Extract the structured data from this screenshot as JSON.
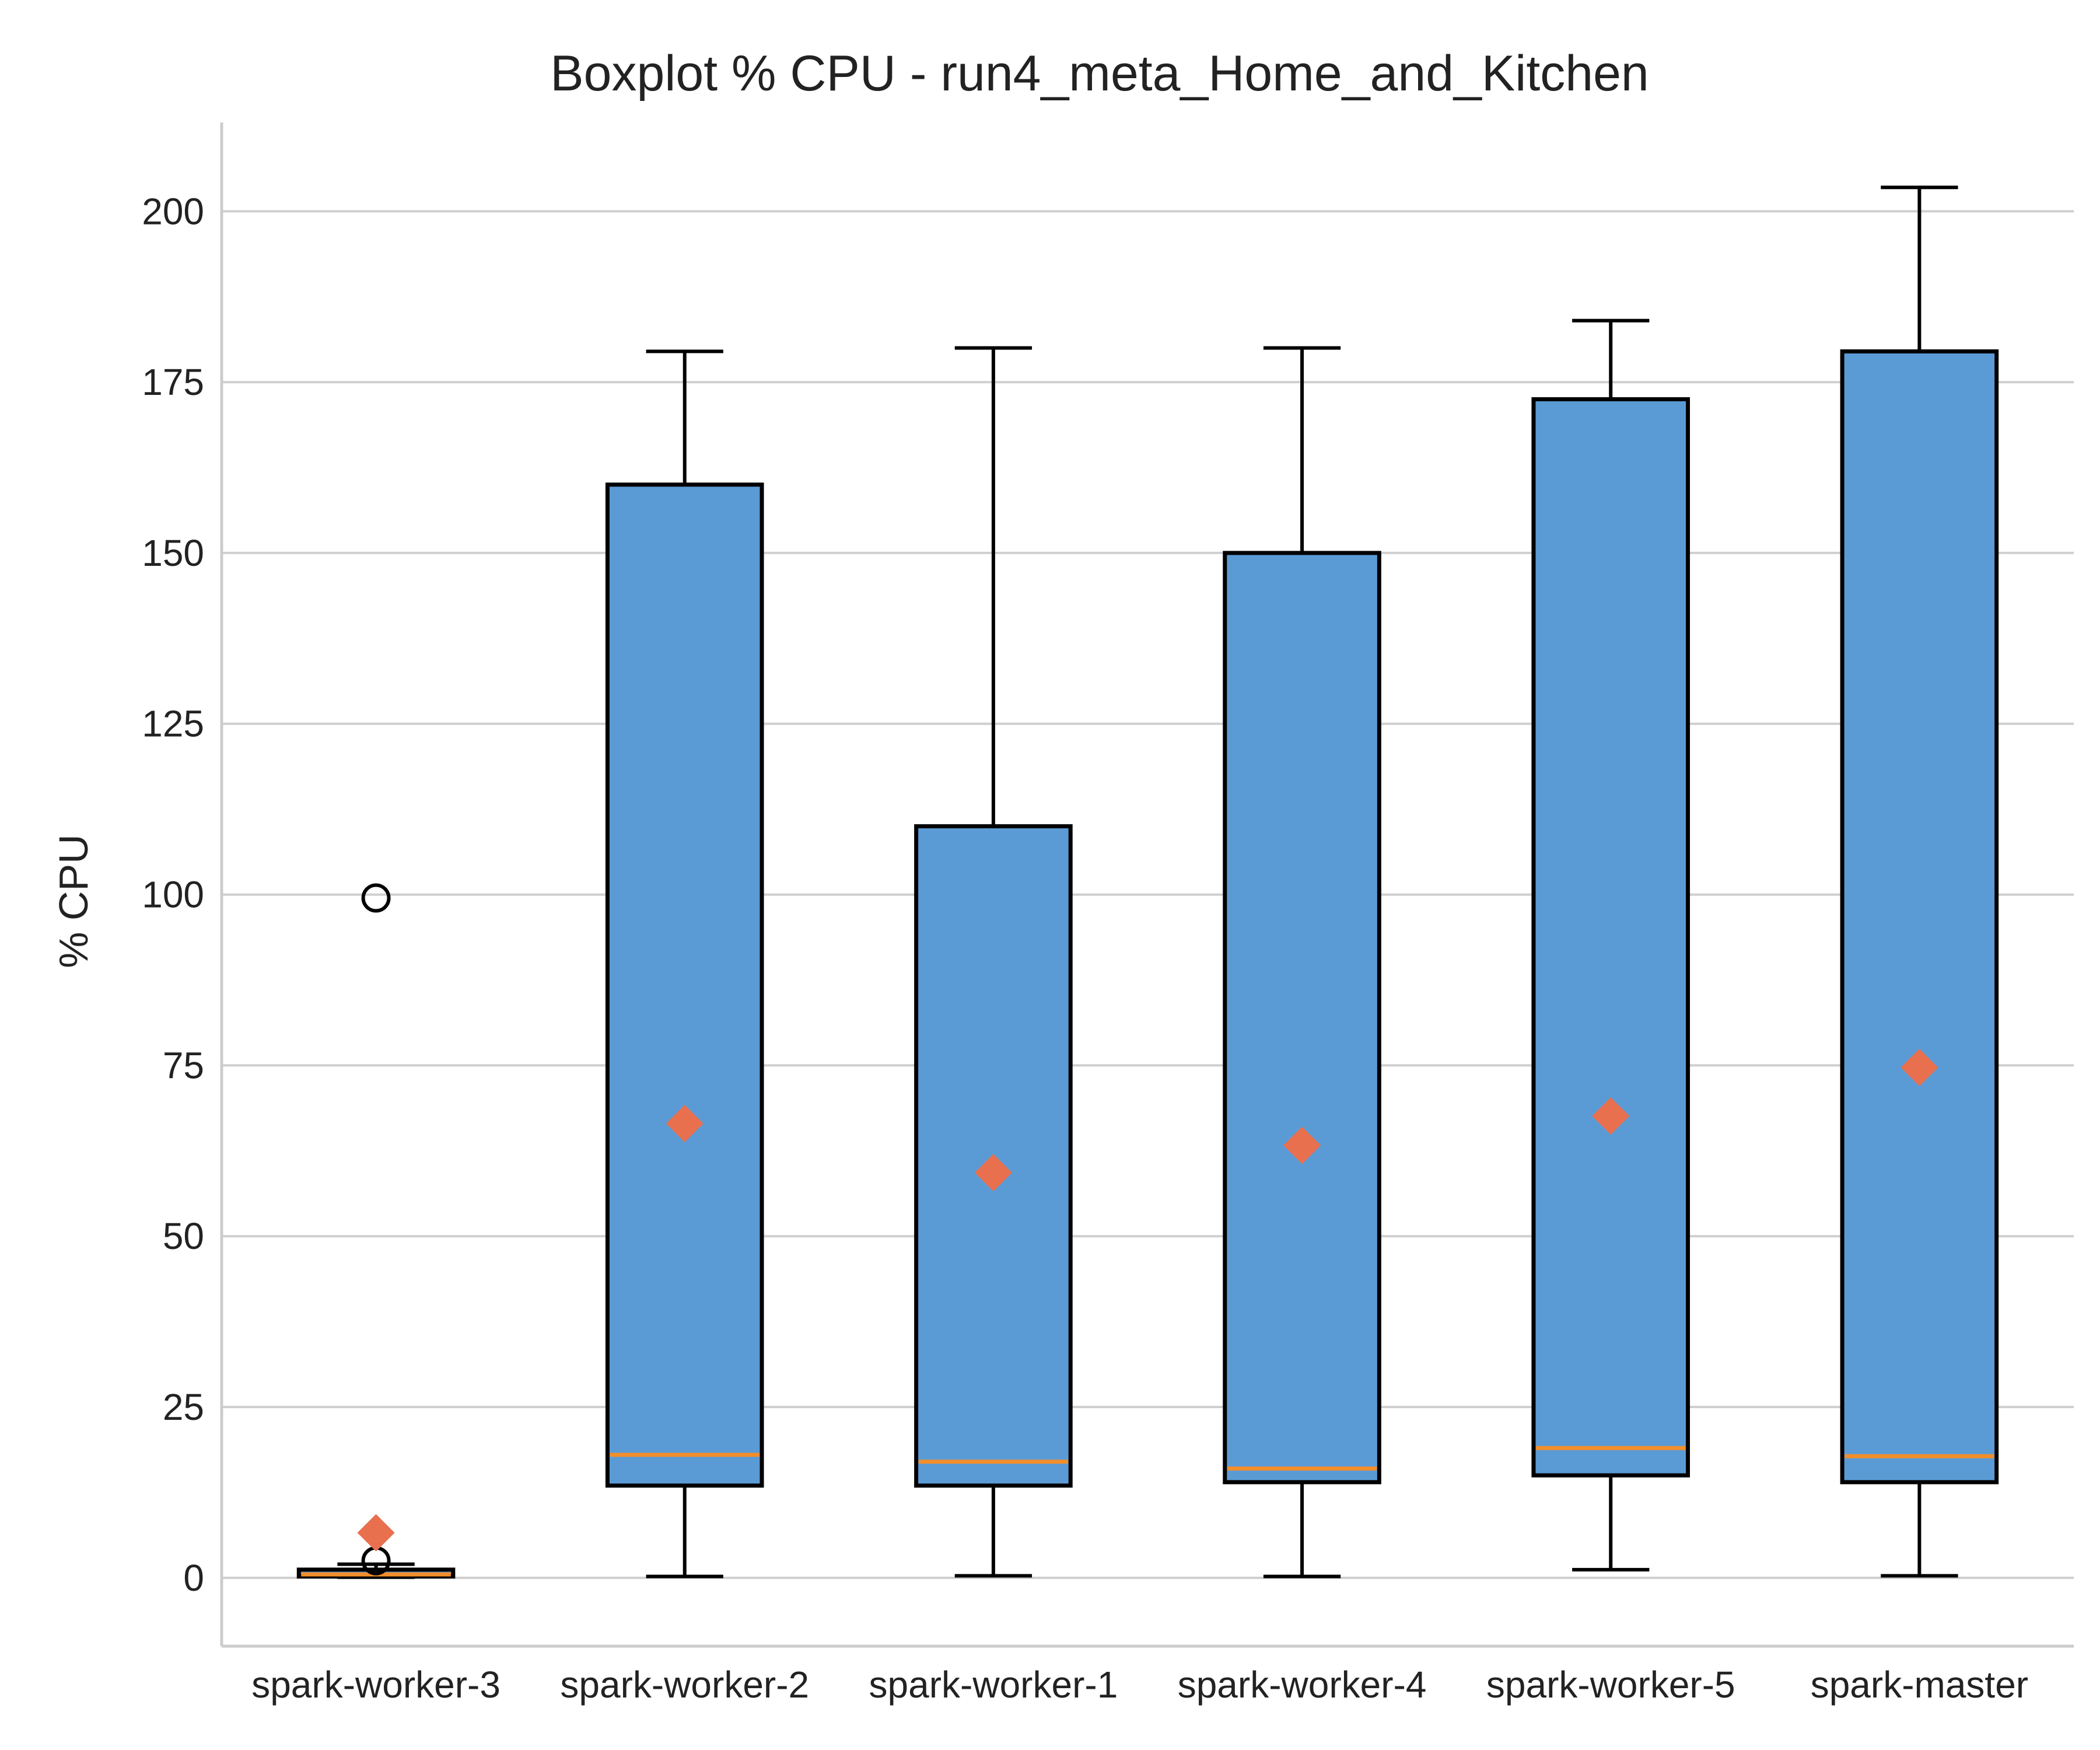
{
  "chart_data": {
    "type": "boxplot",
    "title": "Boxplot % CPU - run4_meta_Home_and_Kitchen",
    "xlabel": "",
    "ylabel": "% CPU",
    "ylim": [
      -10,
      213
    ],
    "yticks": [
      0,
      25,
      50,
      75,
      100,
      125,
      150,
      175,
      200
    ],
    "grid": "horizontal",
    "colors": {
      "box": "#5b9bd5",
      "median": "#f28e2b",
      "mean": "#e8704f",
      "edge": "#000000"
    },
    "categories": [
      "spark-worker-3",
      "spark-worker-2",
      "spark-worker-1",
      "spark-worker-4",
      "spark-worker-5",
      "spark-master"
    ],
    "boxes": [
      {
        "whisker_low": 0.1,
        "q1": 0.2,
        "median": 0.5,
        "q3": 1.2,
        "whisker_high": 2.0,
        "mean": 6.6,
        "outliers": [
          2.5,
          99.5
        ]
      },
      {
        "whisker_low": 0.2,
        "q1": 13.5,
        "median": 18.0,
        "q3": 160.0,
        "whisker_high": 179.5,
        "mean": 66.5,
        "outliers": []
      },
      {
        "whisker_low": 0.3,
        "q1": 13.5,
        "median": 17.0,
        "q3": 110.0,
        "whisker_high": 180.0,
        "mean": 59.3,
        "outliers": []
      },
      {
        "whisker_low": 0.2,
        "q1": 14.0,
        "median": 16.0,
        "q3": 150.0,
        "whisker_high": 180.0,
        "mean": 63.3,
        "outliers": []
      },
      {
        "whisker_low": 1.2,
        "q1": 15.0,
        "median": 19.0,
        "q3": 172.5,
        "whisker_high": 184.0,
        "mean": 67.6,
        "outliers": []
      },
      {
        "whisker_low": 0.3,
        "q1": 14.0,
        "median": 17.8,
        "q3": 179.5,
        "whisker_high": 203.5,
        "mean": 74.7,
        "outliers": []
      }
    ]
  }
}
